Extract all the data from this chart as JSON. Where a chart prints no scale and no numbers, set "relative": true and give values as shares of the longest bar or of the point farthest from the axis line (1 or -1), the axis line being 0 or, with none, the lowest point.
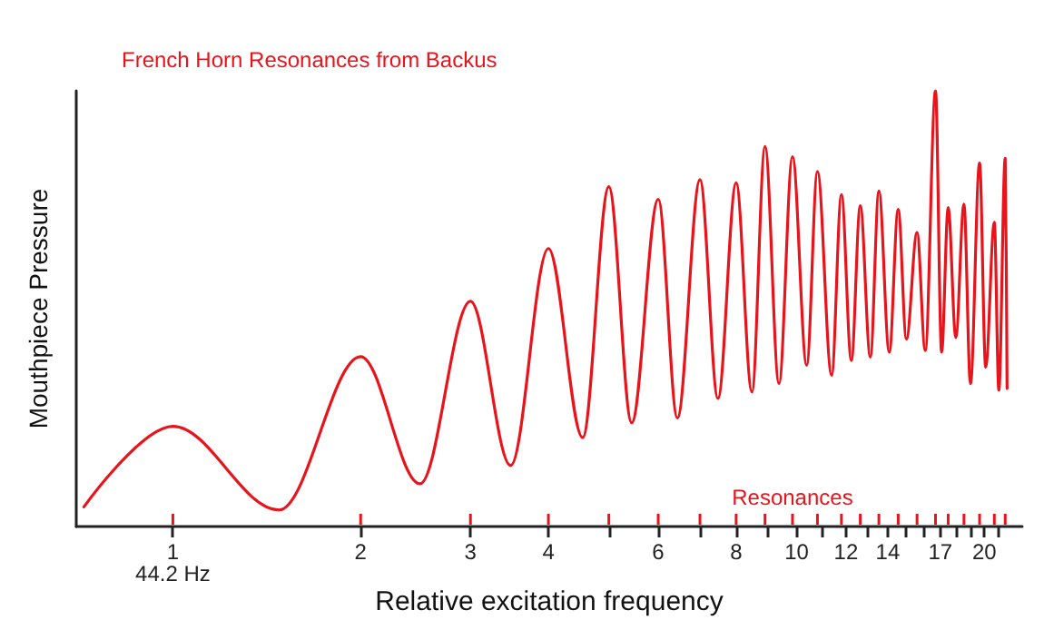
{
  "chart_data": {
    "type": "line",
    "title": "French Horn Resonances from Backus",
    "xlabel": "Relative excitation frequency",
    "ylabel": "Mouthpiece Pressure",
    "relative": true,
    "log": "x",
    "grid": false,
    "marker": "none",
    "line_style": "solid",
    "xlim": [
      0.7,
      23
    ],
    "xticks": [
      1,
      2,
      3,
      4,
      {
        "value": 5,
        "label": null
      },
      6,
      {
        "value": 7,
        "label": null
      },
      8,
      {
        "value": 9,
        "label": null
      },
      10,
      {
        "value": 11,
        "label": null
      },
      12,
      {
        "value": 13,
        "label": null
      },
      14,
      {
        "value": 15,
        "label": null
      },
      {
        "value": 16,
        "label": null
      },
      17,
      {
        "value": 18,
        "label": null
      },
      {
        "value": 19,
        "label": null
      },
      20,
      {
        "value": 21,
        "label": null
      }
    ],
    "annotations": [
      "44.2 Hz",
      "Resonances"
    ],
    "series": [
      {
        "color": "#e8141c",
        "x": [
          0.72,
          1,
          1.48,
          2,
          2.49,
          3,
          3.48,
          4,
          4.54,
          5,
          5.44,
          6,
          6.44,
          7,
          7.48,
          8,
          8.48,
          8.9,
          9.37,
          9.85,
          10.38,
          10.8,
          11.38,
          11.8,
          12.24,
          12.65,
          13.13,
          13.55,
          14.08,
          14.55,
          15,
          15.6,
          16.08,
          16.7,
          17.08,
          17.5,
          18,
          18.55,
          19,
          19.65,
          20.1,
          20.75,
          21.1,
          21.6,
          21.75
        ],
        "values": [
          0.045,
          0.23,
          0.038,
          0.39,
          0.098,
          0.517,
          0.14,
          0.638,
          0.204,
          0.78,
          0.238,
          0.751,
          0.249,
          0.796,
          0.294,
          0.789,
          0.309,
          0.872,
          0.328,
          0.849,
          0.37,
          0.815,
          0.347,
          0.762,
          0.381,
          0.736,
          0.389,
          0.77,
          0.4,
          0.728,
          0.43,
          0.675,
          0.404,
          1.0,
          0.4,
          0.732,
          0.434,
          0.74,
          0.328,
          0.834,
          0.366,
          0.698,
          0.313,
          0.845,
          0.317
        ]
      }
    ]
  }
}
